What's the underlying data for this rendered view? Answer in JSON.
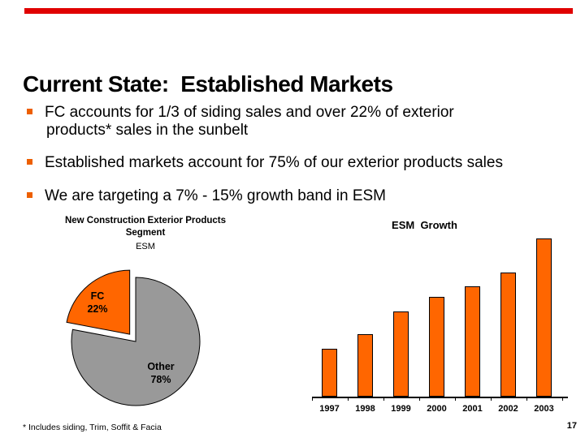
{
  "slide": {
    "title": "Current State:  Established Markets",
    "footnote": "* Includes siding, Trim, Soffit & Facia",
    "page_number": "17"
  },
  "bullets": [
    {
      "lines": [
        "FC accounts for 1/3 of siding sales and over 22% of exterior",
        "products* sales in the sunbelt"
      ]
    },
    {
      "lines": [
        "Established markets account for 75% of our exterior products sales"
      ]
    },
    {
      "lines": [
        "We are targeting a 7% - 15% growth band in ESM"
      ]
    }
  ],
  "colors": {
    "top_bar_red": "#E00000",
    "bullet_orange": "#ED5F00",
    "accent_orange": "#FF6600",
    "pie_other_gray": "#999999",
    "text": "#000000"
  },
  "chart_data": [
    {
      "type": "pie",
      "title_lines": [
        "New Construction Exterior Products",
        "Segment",
        "ESM"
      ],
      "slices": [
        {
          "label": "FC",
          "pct_label": "22%",
          "value": 22,
          "color": "#FF6600",
          "exploded": true
        },
        {
          "label": "Other",
          "pct_label": "78%",
          "value": 78,
          "color": "#999999",
          "exploded": false
        }
      ],
      "legend": "labels-inside-slices",
      "outline": "#000000"
    },
    {
      "type": "bar",
      "title": "ESM  Growth",
      "categories": [
        "1997",
        "1998",
        "1999",
        "2000",
        "2001",
        "2002",
        "2003"
      ],
      "values_relative": [
        59,
        77,
        105,
        123,
        136,
        153,
        195
      ],
      "value_units": "arbitrary (no y-axis labels shown; values are relative bar heights)",
      "bar_color": "#FF6600",
      "bar_border": "#000000",
      "grid": false,
      "legend_position": "none"
    }
  ]
}
